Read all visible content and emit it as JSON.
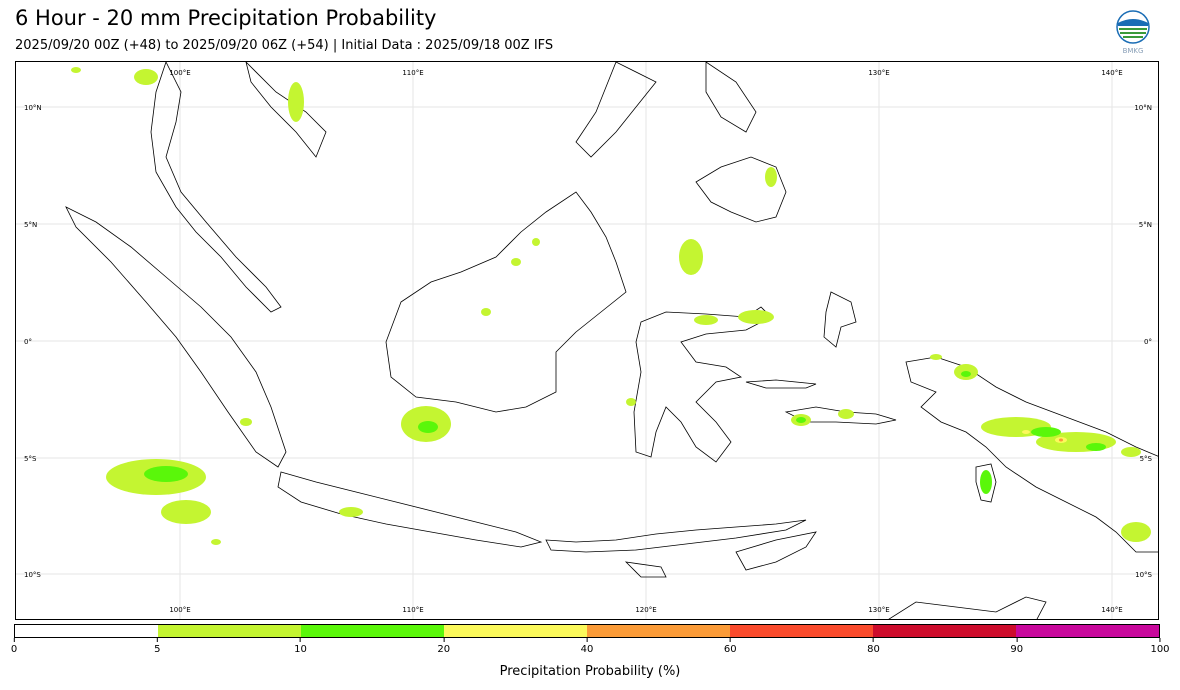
{
  "header": {
    "title": "6 Hour - 20 mm Precipitation Probability",
    "subtitle": "2025/09/20 00Z (+48) to 2025/09/20 06Z (+54) | Initial Data : 2025/09/18 00Z IFS",
    "logo_text": "BMKG"
  },
  "map": {
    "lon_labels": [
      "100°E",
      "110°E",
      "120°E",
      "130°E",
      "140°E"
    ],
    "lat_labels": [
      "10°N",
      "5°N",
      "0°",
      "5°S",
      "10°S"
    ],
    "grid_color": "#e6e6e6",
    "land_outline_color": "#000000"
  },
  "colorbar": {
    "label": "Precipitation Probability (%)",
    "ticks": [
      "0",
      "5",
      "10",
      "20",
      "40",
      "60",
      "80",
      "90",
      "100"
    ],
    "colors": [
      "#ffffff",
      "#c4f531",
      "#5af70a",
      "#fbf95b",
      "#fb9b37",
      "#fa4b2c",
      "#cd0c2c",
      "#c8089c"
    ]
  }
}
